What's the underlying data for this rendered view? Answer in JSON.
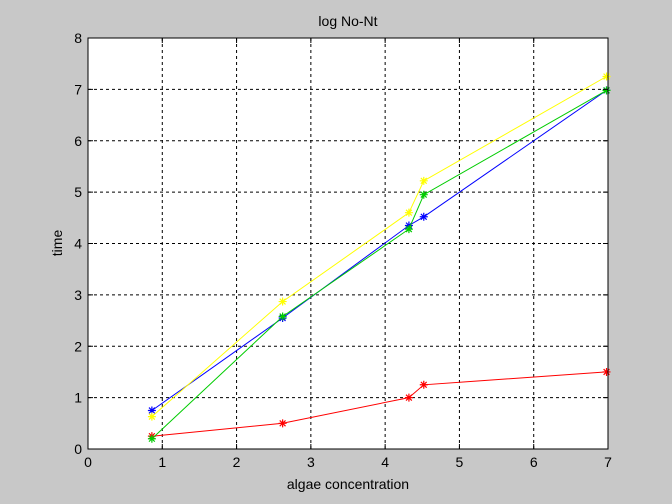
{
  "chart_data": {
    "type": "line",
    "title": "log No-Nt",
    "xlabel": "algae concentration",
    "ylabel": "time",
    "xlim": [
      0,
      7
    ],
    "ylim": [
      0,
      8
    ],
    "xticks": [
      "0",
      "1",
      "2",
      "3",
      "4",
      "5",
      "6",
      "7"
    ],
    "yticks": [
      "0",
      "1",
      "2",
      "3",
      "4",
      "5",
      "6",
      "7",
      "8"
    ],
    "grid": true,
    "marker": "asterisk",
    "series": [
      {
        "color": "#ff0000",
        "x": [
          0.86,
          2.62,
          4.32,
          4.52,
          6.98
        ],
        "y": [
          0.25,
          0.5,
          1.0,
          1.25,
          1.5
        ]
      },
      {
        "color": "#0000ff",
        "x": [
          0.86,
          2.62,
          4.32,
          4.52,
          6.98
        ],
        "y": [
          0.75,
          2.55,
          4.35,
          4.52,
          6.98
        ]
      },
      {
        "color": "#00cc00",
        "x": [
          0.86,
          2.62,
          4.32,
          4.52,
          6.98
        ],
        "y": [
          0.2,
          2.58,
          4.28,
          4.95,
          6.98
        ]
      },
      {
        "color": "#ffff00",
        "x": [
          0.86,
          2.62,
          4.32,
          4.52,
          6.98
        ],
        "y": [
          0.63,
          2.87,
          4.6,
          5.22,
          7.25
        ]
      }
    ]
  }
}
